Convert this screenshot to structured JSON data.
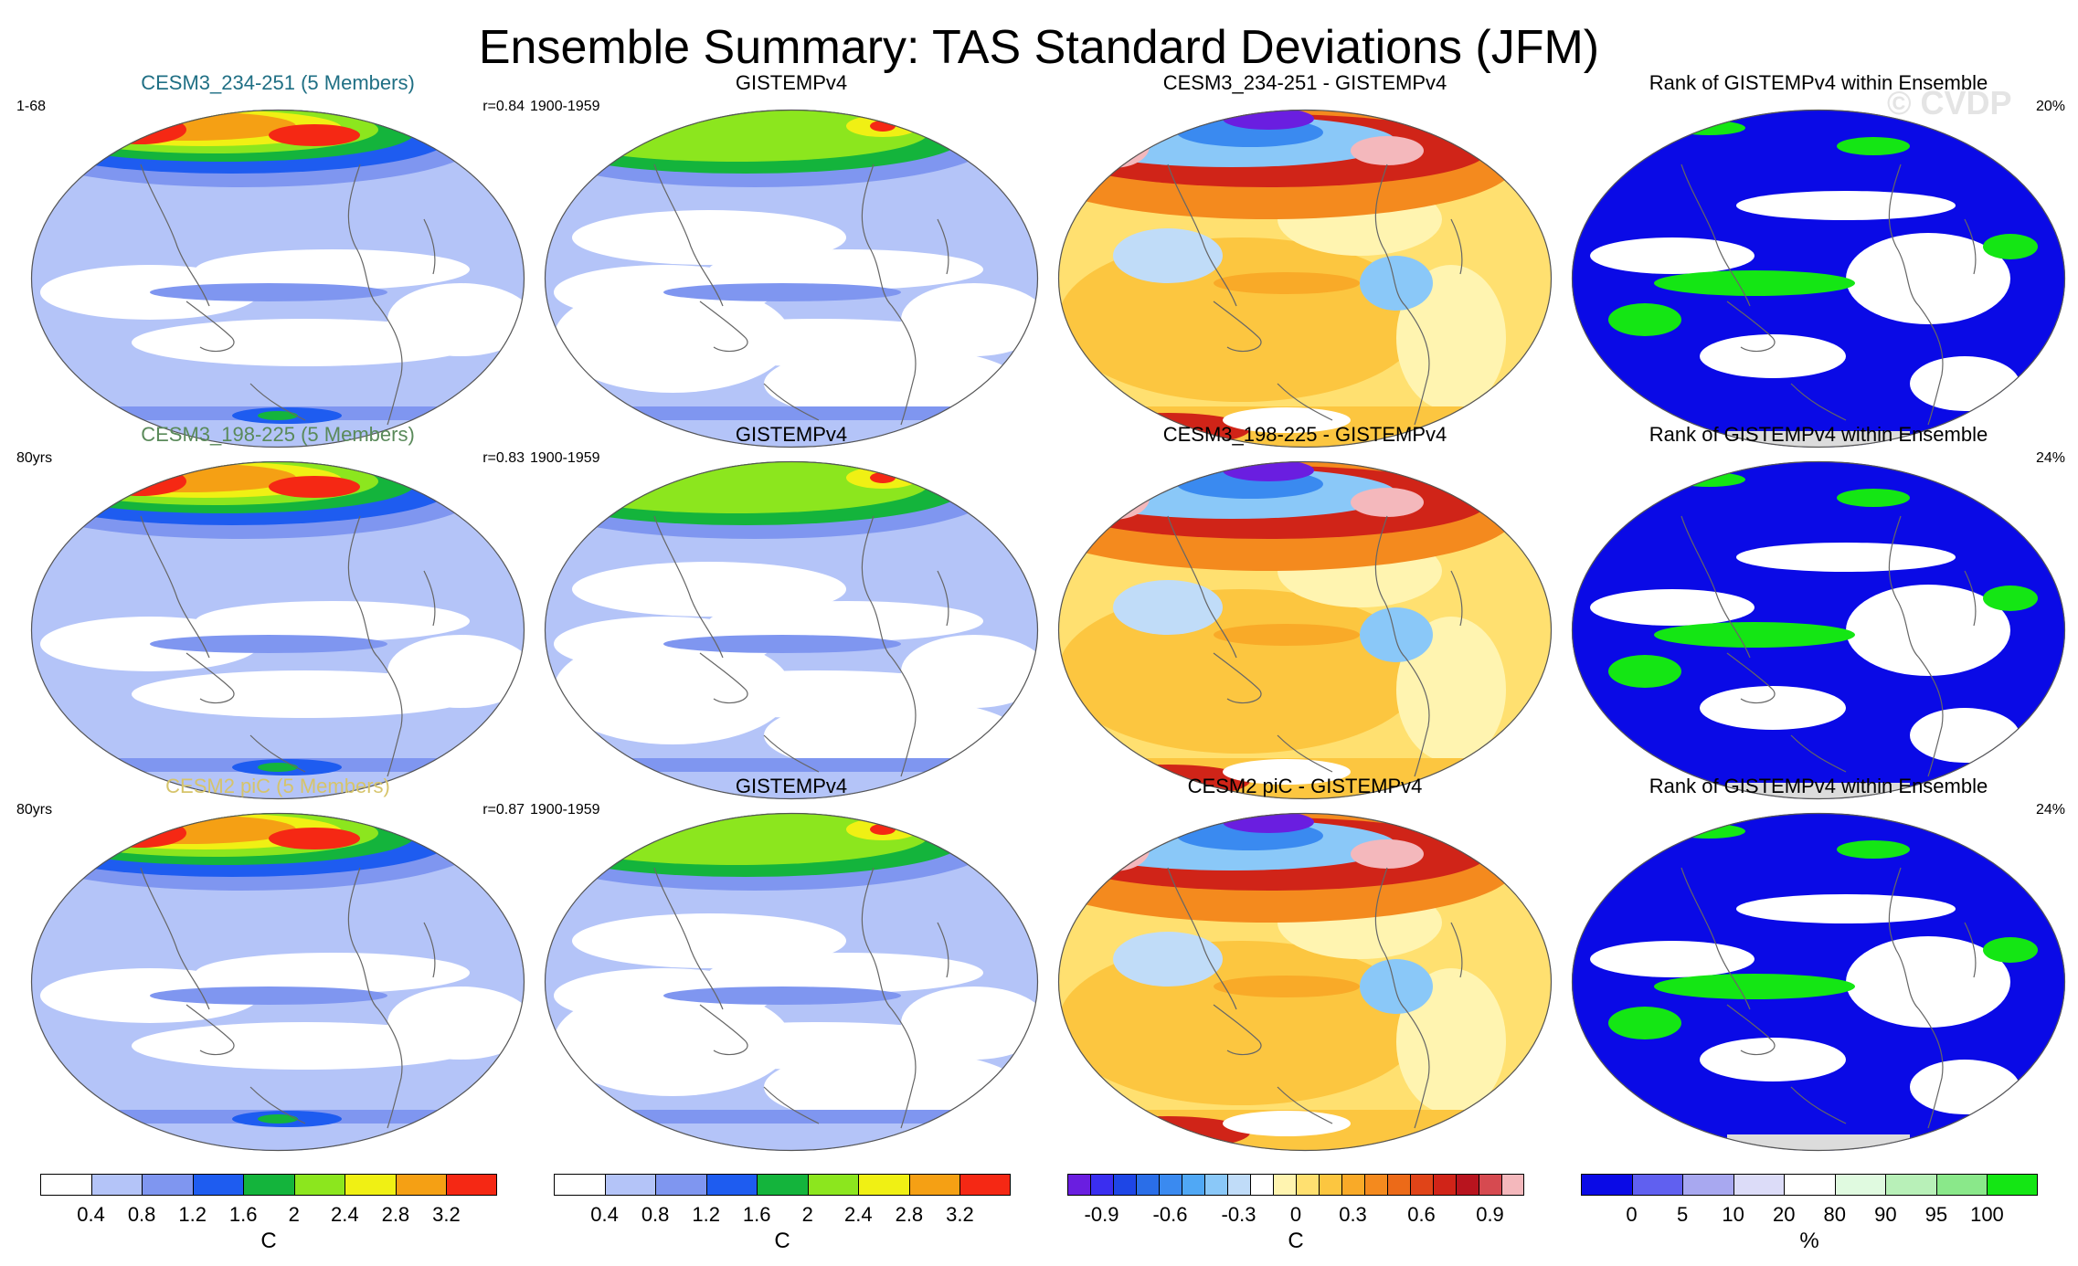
{
  "title": "Ensemble Summary: TAS Standard Deviations (JFM)",
  "watermark": "© CVDP",
  "rows": [
    {
      "panels": [
        {
          "title": "CESM3_234-251 (5 Members)",
          "title_color": "#1f6f84",
          "left_tag": "1-68",
          "right_tag": "r=0.84",
          "kind": "std"
        },
        {
          "title": "GISTEMPv4",
          "title_color": "#000000",
          "left_tag": "1900-1959",
          "right_tag": "",
          "kind": "obs"
        },
        {
          "title": "CESM3_234-251 - GISTEMPv4",
          "title_color": "#000000",
          "left_tag": "",
          "right_tag": "",
          "kind": "diff"
        },
        {
          "title": "Rank of GISTEMPv4 within Ensemble",
          "title_color": "#000000",
          "left_tag": "",
          "right_tag": "20%",
          "kind": "rank"
        }
      ]
    },
    {
      "panels": [
        {
          "title": "CESM3_198-225 (5 Members)",
          "title_color": "#5a8a5a",
          "left_tag": "80yrs",
          "right_tag": "r=0.83",
          "kind": "std"
        },
        {
          "title": "GISTEMPv4",
          "title_color": "#000000",
          "left_tag": "1900-1959",
          "right_tag": "",
          "kind": "obs"
        },
        {
          "title": "CESM3_198-225 - GISTEMPv4",
          "title_color": "#000000",
          "left_tag": "",
          "right_tag": "",
          "kind": "diff"
        },
        {
          "title": "Rank of GISTEMPv4 within Ensemble",
          "title_color": "#000000",
          "left_tag": "",
          "right_tag": "24%",
          "kind": "rank"
        }
      ]
    },
    {
      "panels": [
        {
          "title": "CESM2 piC (5 Members)",
          "title_color": "#d6c46a",
          "left_tag": "80yrs",
          "right_tag": "r=0.87",
          "kind": "std"
        },
        {
          "title": "GISTEMPv4",
          "title_color": "#000000",
          "left_tag": "1900-1959",
          "right_tag": "",
          "kind": "obs"
        },
        {
          "title": "CESM2 piC - GISTEMPv4",
          "title_color": "#000000",
          "left_tag": "",
          "right_tag": "",
          "kind": "diff"
        },
        {
          "title": "Rank of GISTEMPv4 within Ensemble",
          "title_color": "#000000",
          "left_tag": "",
          "right_tag": "24%",
          "kind": "rank"
        }
      ]
    }
  ],
  "colorbars": [
    {
      "name": "std",
      "unit": "C",
      "colors": [
        "#ffffff",
        "#b4c4f8",
        "#7f96f0",
        "#1e5cf0",
        "#14b43c",
        "#8ce61e",
        "#f0f014",
        "#f5a014",
        "#f52814"
      ],
      "labels": [
        "0.4",
        "0.8",
        "1.2",
        "1.6",
        "2",
        "2.4",
        "2.8",
        "3.2"
      ]
    },
    {
      "name": "std-obs",
      "unit": "C",
      "colors": [
        "#ffffff",
        "#b4c4f8",
        "#7f96f0",
        "#1e5cf0",
        "#14b43c",
        "#8ce61e",
        "#f0f014",
        "#f5a014",
        "#f52814"
      ],
      "labels": [
        "0.4",
        "0.8",
        "1.2",
        "1.6",
        "2",
        "2.4",
        "2.8",
        "3.2"
      ]
    },
    {
      "name": "diff",
      "unit": "C",
      "colors": [
        "#6a1ee0",
        "#3a2ef0",
        "#1e46e6",
        "#2a6ee8",
        "#3a8af0",
        "#50a8f5",
        "#8ac8f8",
        "#c0dcf8",
        "#ffffff",
        "#fff4b0",
        "#ffe070",
        "#fcc640",
        "#f9aa28",
        "#f48a1e",
        "#ec6a18",
        "#e04418",
        "#d02418",
        "#b8141e",
        "#d64a50",
        "#f4b8bc"
      ],
      "labels": [
        "-0.9",
        "-0.6",
        "-0.3",
        "0",
        "0.3",
        "0.6",
        "0.9"
      ],
      "label_index": [
        1.5,
        4.5,
        7.5,
        10,
        12.5,
        15.5,
        18.5
      ]
    },
    {
      "name": "rank",
      "unit": "%",
      "colors": [
        "#0a0ae6",
        "#6060f0",
        "#a8a8f0",
        "#dcdcf8",
        "#ffffff",
        "#e0fae0",
        "#b8f0b8",
        "#8ae88a",
        "#14e614"
      ],
      "labels": [
        "0",
        "5",
        "10",
        "20",
        "80",
        "90",
        "95",
        "100"
      ]
    }
  ]
}
